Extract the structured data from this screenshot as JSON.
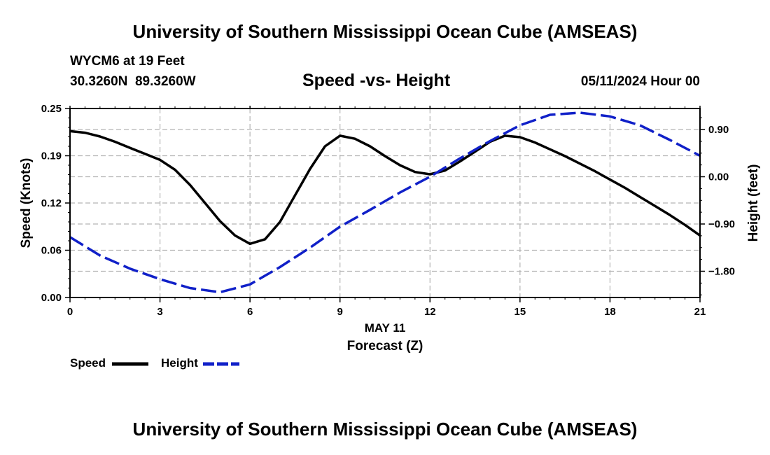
{
  "header": {
    "title_top": "University of Southern Mississippi Ocean Cube (AMSEAS)",
    "title_bottom": "University of Southern Mississippi Ocean Cube (AMSEAS)",
    "station": "WYCM6 at 19 Feet",
    "coords": "30.3260N  89.3260W",
    "datetime": "05/11/2024 Hour 00"
  },
  "legend": {
    "speed_label": "Speed",
    "height_label": "Height"
  },
  "colors": {
    "speed": "#000000",
    "height": "#1020c8",
    "grid": "#b4b4b4"
  },
  "chart_data": {
    "type": "line",
    "title": "Speed -vs- Height",
    "xlabel_date": "MAY 11",
    "xlabel": "Forecast (Z)",
    "ylabel": "Speed (Knots)",
    "y2label": "Height (feet)",
    "xlim": [
      0,
      21
    ],
    "ylim": [
      0,
      0.25
    ],
    "y2lim": [
      -2.3,
      1.3
    ],
    "xticks": [
      0,
      3,
      6,
      9,
      12,
      15,
      18,
      21
    ],
    "xtick_labels": [
      "0",
      "3",
      "6",
      "9",
      "12",
      "15",
      "18",
      "21"
    ],
    "yticks": [
      0,
      0.0625,
      0.125,
      0.1875,
      0.25
    ],
    "ytick_labels": [
      "0.00",
      "0.06",
      "0.12",
      "0.19",
      "0.25"
    ],
    "y2ticks": [
      -1.8,
      -0.9,
      0,
      0.9
    ],
    "y2tick_labels": [
      "−1.80",
      "−0.90",
      "0.00",
      "0.90"
    ],
    "grid": true,
    "series": [
      {
        "name": "Speed",
        "axis": "left",
        "style": "solid",
        "x": [
          0,
          0.5,
          1,
          1.5,
          2,
          2.5,
          3,
          3.5,
          4,
          4.5,
          5,
          5.5,
          6,
          6.5,
          7,
          7.5,
          8,
          8.5,
          9,
          9.5,
          10,
          10.5,
          11,
          11.5,
          12,
          12.5,
          13,
          13.5,
          14,
          14.5,
          15,
          15.5,
          16,
          16.5,
          17,
          17.5,
          18,
          18.5,
          19,
          19.5,
          20,
          20.5,
          21
        ],
        "values": [
          0.22,
          0.218,
          0.213,
          0.206,
          0.198,
          0.19,
          0.182,
          0.169,
          0.149,
          0.125,
          0.101,
          0.082,
          0.071,
          0.077,
          0.1,
          0.135,
          0.17,
          0.2,
          0.214,
          0.21,
          0.2,
          0.187,
          0.175,
          0.166,
          0.163,
          0.168,
          0.18,
          0.193,
          0.206,
          0.214,
          0.212,
          0.205,
          0.196,
          0.187,
          0.177,
          0.167,
          0.156,
          0.145,
          0.133,
          0.121,
          0.109,
          0.096,
          0.082
        ]
      },
      {
        "name": "Height",
        "axis": "right",
        "style": "dashed",
        "x": [
          0,
          1,
          2,
          3,
          4,
          5,
          6,
          7,
          8,
          9,
          10,
          11,
          12,
          13,
          14,
          15,
          16,
          17,
          18,
          19,
          20,
          21
        ],
        "values": [
          -1.15,
          -1.5,
          -1.75,
          -1.95,
          -2.12,
          -2.2,
          -2.05,
          -1.72,
          -1.35,
          -0.95,
          -0.63,
          -0.3,
          0.0,
          0.35,
          0.68,
          0.98,
          1.18,
          1.22,
          1.15,
          0.98,
          0.7,
          0.4
        ]
      }
    ]
  }
}
